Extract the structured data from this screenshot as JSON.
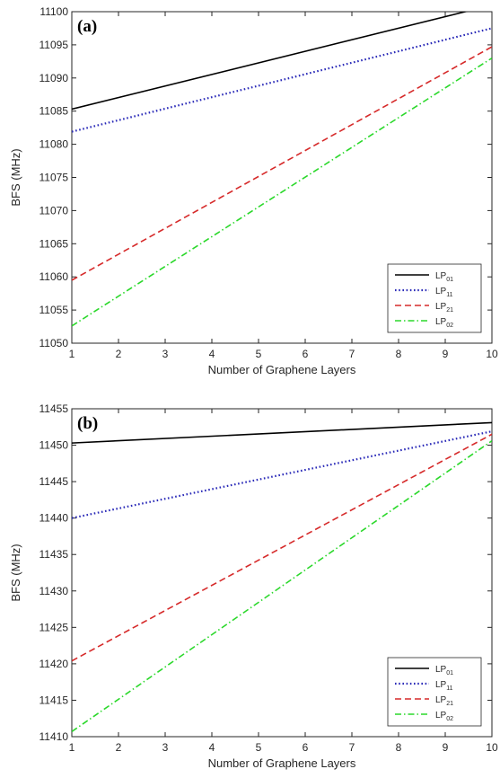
{
  "chart_data": [
    {
      "type": "line",
      "panel_label": "(a)",
      "xlabel": "Number of Graphene Layers",
      "ylabel": "BFS (MHz)",
      "xlim": [
        1,
        10
      ],
      "ylim": [
        11050,
        11100
      ],
      "xticks": [
        1,
        2,
        3,
        4,
        5,
        6,
        7,
        8,
        9,
        10
      ],
      "yticks": [
        11050,
        11055,
        11060,
        11065,
        11070,
        11075,
        11080,
        11085,
        11090,
        11095,
        11100
      ],
      "grid": false,
      "legend_position": "bottom-right",
      "series": [
        {
          "name": "LP01",
          "label_main": "LP",
          "label_sub": "01",
          "color": "#000000",
          "style": "solid",
          "x": [
            1,
            10
          ],
          "y": [
            11085.3,
            11101
          ]
        },
        {
          "name": "LP11",
          "label_main": "LP",
          "label_sub": "11",
          "color": "#2a2ab8",
          "style": "dotted",
          "x": [
            1,
            10
          ],
          "y": [
            11081.9,
            11097.5
          ]
        },
        {
          "name": "LP21",
          "label_main": "LP",
          "label_sub": "21",
          "color": "#d62a2a",
          "style": "dashed",
          "x": [
            1,
            10
          ],
          "y": [
            11059.5,
            11094.7
          ]
        },
        {
          "name": "LP02",
          "label_main": "LP",
          "label_sub": "02",
          "color": "#2bd82b",
          "style": "dashdot",
          "x": [
            1,
            10
          ],
          "y": [
            11052.6,
            11093
          ]
        }
      ]
    },
    {
      "type": "line",
      "panel_label": "(b)",
      "xlabel": "Number of Graphene Layers",
      "ylabel": "BFS (MHz)",
      "xlim": [
        1,
        10
      ],
      "ylim": [
        11410,
        11455
      ],
      "xticks": [
        1,
        2,
        3,
        4,
        5,
        6,
        7,
        8,
        9,
        10
      ],
      "yticks": [
        11410,
        11415,
        11420,
        11425,
        11430,
        11435,
        11440,
        11445,
        11450,
        11455
      ],
      "grid": false,
      "legend_position": "bottom-right",
      "series": [
        {
          "name": "LP01",
          "label_main": "LP",
          "label_sub": "01",
          "color": "#000000",
          "style": "solid",
          "x": [
            1,
            10
          ],
          "y": [
            11450.3,
            11453.1
          ]
        },
        {
          "name": "LP11",
          "label_main": "LP",
          "label_sub": "11",
          "color": "#2a2ab8",
          "style": "dotted",
          "x": [
            1,
            10
          ],
          "y": [
            11440,
            11451.9
          ]
        },
        {
          "name": "LP21",
          "label_main": "LP",
          "label_sub": "21",
          "color": "#d62a2a",
          "style": "dashed",
          "x": [
            1,
            10
          ],
          "y": [
            11420.4,
            11451.5
          ]
        },
        {
          "name": "LP02",
          "label_main": "LP",
          "label_sub": "02",
          "color": "#2bd82b",
          "style": "dashdot",
          "x": [
            1,
            10
          ],
          "y": [
            11410.7,
            11450.6
          ]
        }
      ]
    }
  ]
}
